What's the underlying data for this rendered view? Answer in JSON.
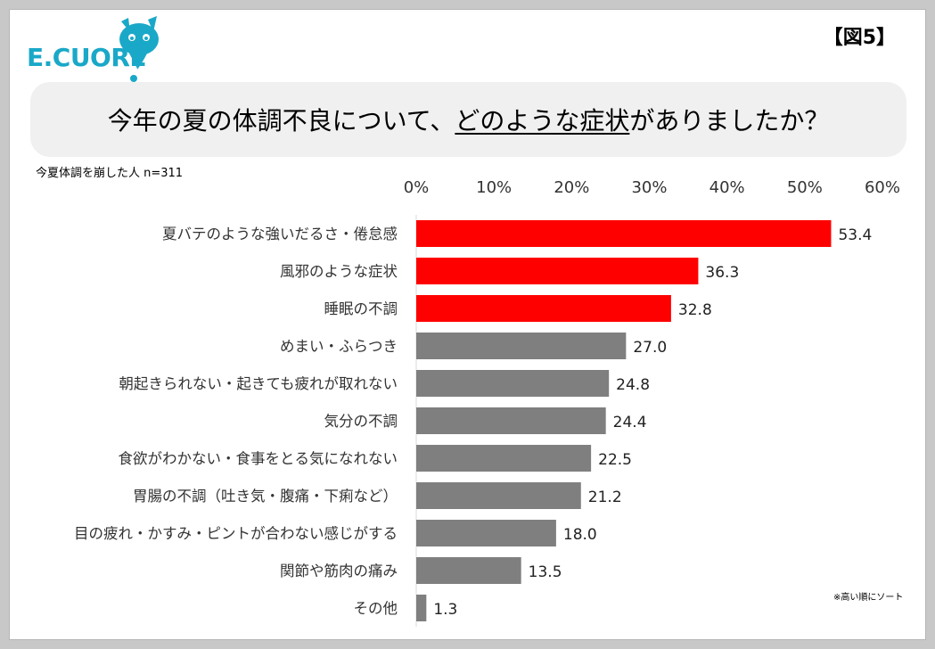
{
  "figure_label": "【図5】",
  "logo_text": "E.CUORE",
  "question": {
    "prefix": "今年の夏の体調不良について、",
    "highlight": "どのような症状",
    "suffix": "がありましたか？"
  },
  "sample_note": "今夏体調を崩した人 n=311",
  "sort_note": "※高い順にソート",
  "colors": {
    "highlight_bar": "#ff0000",
    "normal_bar": "#7f7f7f",
    "logo": "#1aa8c8"
  },
  "chart_data": {
    "type": "bar",
    "orientation": "horizontal",
    "xlim": [
      0,
      60
    ],
    "x_ticks": [
      "0%",
      "10%",
      "20%",
      "30%",
      "40%",
      "50%",
      "60%"
    ],
    "tick_position": "top",
    "grid": false,
    "categories": [
      "夏バテのような強いだるさ・倦怠感",
      "風邪のような症状",
      "睡眠の不調",
      "めまい・ふらつき",
      "朝起きられない・起きても疲れが取れない",
      "気分の不調",
      "食欲がわかない・食事をとる気になれない",
      "胃腸の不調（吐き気・腹痛・下痢など）",
      "目の疲れ・かすみ・ピントが合わない感じがする",
      "関節や筋肉の痛み",
      "その他"
    ],
    "values": [
      53.4,
      36.3,
      32.8,
      27.0,
      24.8,
      24.4,
      22.5,
      21.2,
      18.0,
      13.5,
      1.3
    ],
    "value_labels": [
      "53.4",
      "36.3",
      "32.8",
      "27.0",
      "24.8",
      "24.4",
      "22.5",
      "21.2",
      "18.0",
      "13.5",
      "1.3"
    ],
    "highlighted_top": 3
  }
}
